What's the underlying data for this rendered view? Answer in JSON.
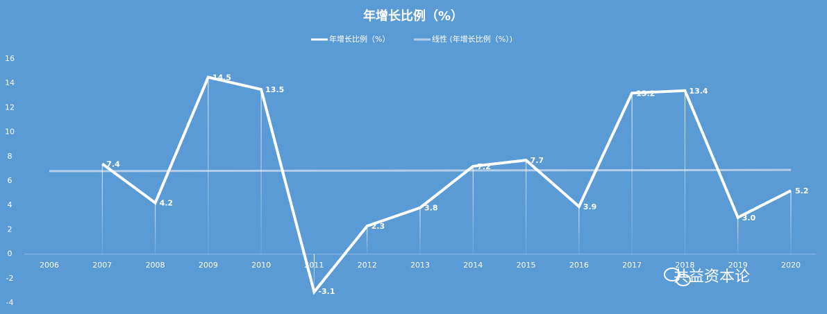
{
  "chart_data": {
    "type": "line",
    "title": "年增长比例（%）",
    "categories": [
      "2006",
      "2007",
      "2008",
      "2009",
      "2010",
      "2011",
      "2012",
      "2013",
      "2014",
      "2015",
      "2016",
      "2017",
      "2018",
      "2019",
      "2020"
    ],
    "series": [
      {
        "name": "年增长比例（%）",
        "color": "#ffffff",
        "values": [
          null,
          7.4,
          4.2,
          14.5,
          13.5,
          -3.1,
          2.3,
          3.8,
          7.2,
          7.7,
          3.9,
          13.2,
          13.4,
          3.0,
          5.2
        ],
        "value_labels": [
          null,
          "7.4",
          "4.2",
          "14.5",
          "13.5",
          "-3.1",
          "2.3",
          "3.8",
          "7.2",
          "7.7",
          "3.9",
          "13.2",
          "13.4",
          "3.0",
          "5.2"
        ]
      },
      {
        "name": "线性 (年增长比例（%）)",
        "color": "#b4cdea",
        "x": [
          "2006",
          "2020"
        ],
        "values": [
          6.8,
          6.9
        ]
      }
    ],
    "ylim": [
      -4,
      16
    ],
    "yticks": [
      -4,
      -2,
      0,
      2,
      4,
      6,
      8,
      10,
      12,
      14,
      16
    ],
    "watermark": "共益资本论"
  }
}
